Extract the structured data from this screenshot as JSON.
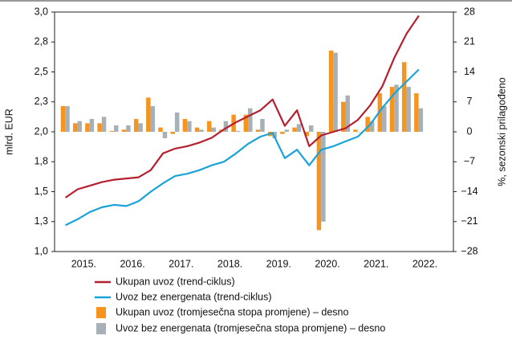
{
  "chart_data": {
    "type": "bar_line",
    "y_label": "mlrd. EUR",
    "y2_label": "%, sezonski prilagođeno",
    "categories": [
      "2015.",
      null,
      null,
      null,
      "2016.",
      null,
      null,
      null,
      "2017.",
      null,
      null,
      null,
      "2018.",
      null,
      null,
      null,
      "2019.",
      null,
      null,
      null,
      "2020.",
      null,
      null,
      null,
      "2021.",
      null,
      null,
      null,
      "2022.",
      null
    ],
    "series": [
      {
        "name": "Ukupan uvoz (trend-ciklus)",
        "kind": "line",
        "color": "#b5202e",
        "values": [
          1.45,
          1.52,
          1.55,
          1.58,
          1.6,
          1.61,
          1.62,
          1.68,
          1.82,
          1.86,
          1.88,
          1.91,
          1.95,
          2.02,
          2.08,
          2.13,
          2.18,
          2.27,
          2.05,
          2.18,
          1.88,
          1.97,
          2.0,
          2.03,
          2.1,
          2.22,
          2.38,
          2.62,
          2.82,
          2.97
        ]
      },
      {
        "name": "Uvoz bez energenata (trend-ciklus)",
        "kind": "line",
        "color": "#1aa3d8",
        "values": [
          1.22,
          1.27,
          1.33,
          1.37,
          1.39,
          1.38,
          1.42,
          1.5,
          1.57,
          1.63,
          1.65,
          1.68,
          1.72,
          1.75,
          1.82,
          1.9,
          1.96,
          1.99,
          1.78,
          1.85,
          1.72,
          1.85,
          1.88,
          1.92,
          1.96,
          2.06,
          2.2,
          2.32,
          2.42,
          2.52
        ]
      },
      {
        "name": "Ukupan uvoz (tromjesečna stopa promjene) – desno",
        "kind": "bar",
        "axis": "y2",
        "color": "#f7941d",
        "values": [
          6,
          2,
          2,
          2,
          0.2,
          0.5,
          3,
          8,
          1,
          -0.5,
          3,
          1,
          2.5,
          0.5,
          4,
          4,
          0.5,
          -1,
          -0.5,
          1,
          -1,
          -23,
          19,
          7,
          0.5,
          3.5,
          9,
          10.5,
          16.3,
          9
        ]
      },
      {
        "name": "Uvoz bez energenata (tromjesečna stopa promjene) – desno",
        "kind": "bar",
        "axis": "y2",
        "color": "#a7b0b6",
        "values": [
          6,
          2.5,
          3,
          3.5,
          1.5,
          1.5,
          2,
          6,
          -1.5,
          4.5,
          2.5,
          0.5,
          1,
          2.5,
          0.2,
          5.5,
          3,
          -1.5,
          0.5,
          1.8,
          1.5,
          -21,
          18.5,
          8.5,
          0,
          2.5,
          6,
          11,
          10.5,
          5.5
        ]
      }
    ],
    "ylim": [
      1.0,
      3.0
    ],
    "yticks": [
      {
        "value": 1.0,
        "label": "1,0"
      },
      {
        "value": 1.25,
        "label": "1,3"
      },
      {
        "value": 1.5,
        "label": "1,5"
      },
      {
        "value": 1.75,
        "label": "1,8"
      },
      {
        "value": 2.0,
        "label": "2,0"
      },
      {
        "value": 2.25,
        "label": "2,3"
      },
      {
        "value": 2.5,
        "label": "2,5"
      },
      {
        "value": 2.75,
        "label": "2,8"
      },
      {
        "value": 3.0,
        "label": "3,0"
      }
    ],
    "y2lim": [
      -28,
      28
    ],
    "y2ticks": [
      {
        "value": -28,
        "label": "−28"
      },
      {
        "value": -21,
        "label": "−21"
      },
      {
        "value": -14,
        "label": "−14"
      },
      {
        "value": -7,
        "label": "−7"
      },
      0,
      7,
      14,
      21,
      28
    ]
  }
}
